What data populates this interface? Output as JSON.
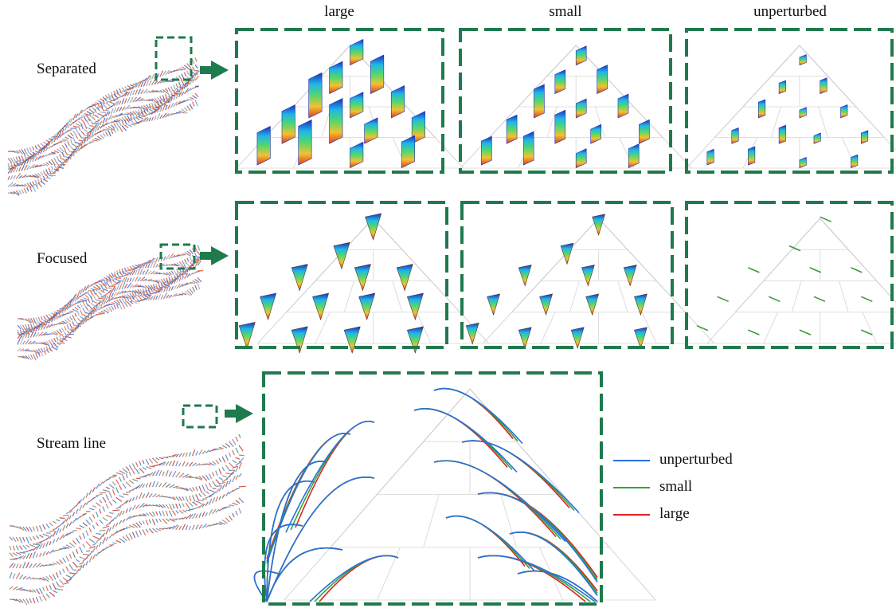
{
  "column_headers": [
    "large",
    "small",
    "unperturbed"
  ],
  "rows": [
    {
      "label": "Separated",
      "panels": [
        "large",
        "small",
        "unperturbed"
      ]
    },
    {
      "label": "Focused",
      "panels": [
        "large",
        "small",
        "unperturbed"
      ]
    },
    {
      "label": "Stream line",
      "panels": [
        "comparison"
      ]
    }
  ],
  "legend": [
    {
      "label": "unperturbed",
      "color": "#2a6fdb"
    },
    {
      "label": "small",
      "color": "#2aaa3a"
    },
    {
      "label": "large",
      "color": "#e02020"
    }
  ],
  "colors": {
    "frame": "#1f7a4d",
    "arrow": "#1f7a4d",
    "grid": "#cfcfcf"
  }
}
